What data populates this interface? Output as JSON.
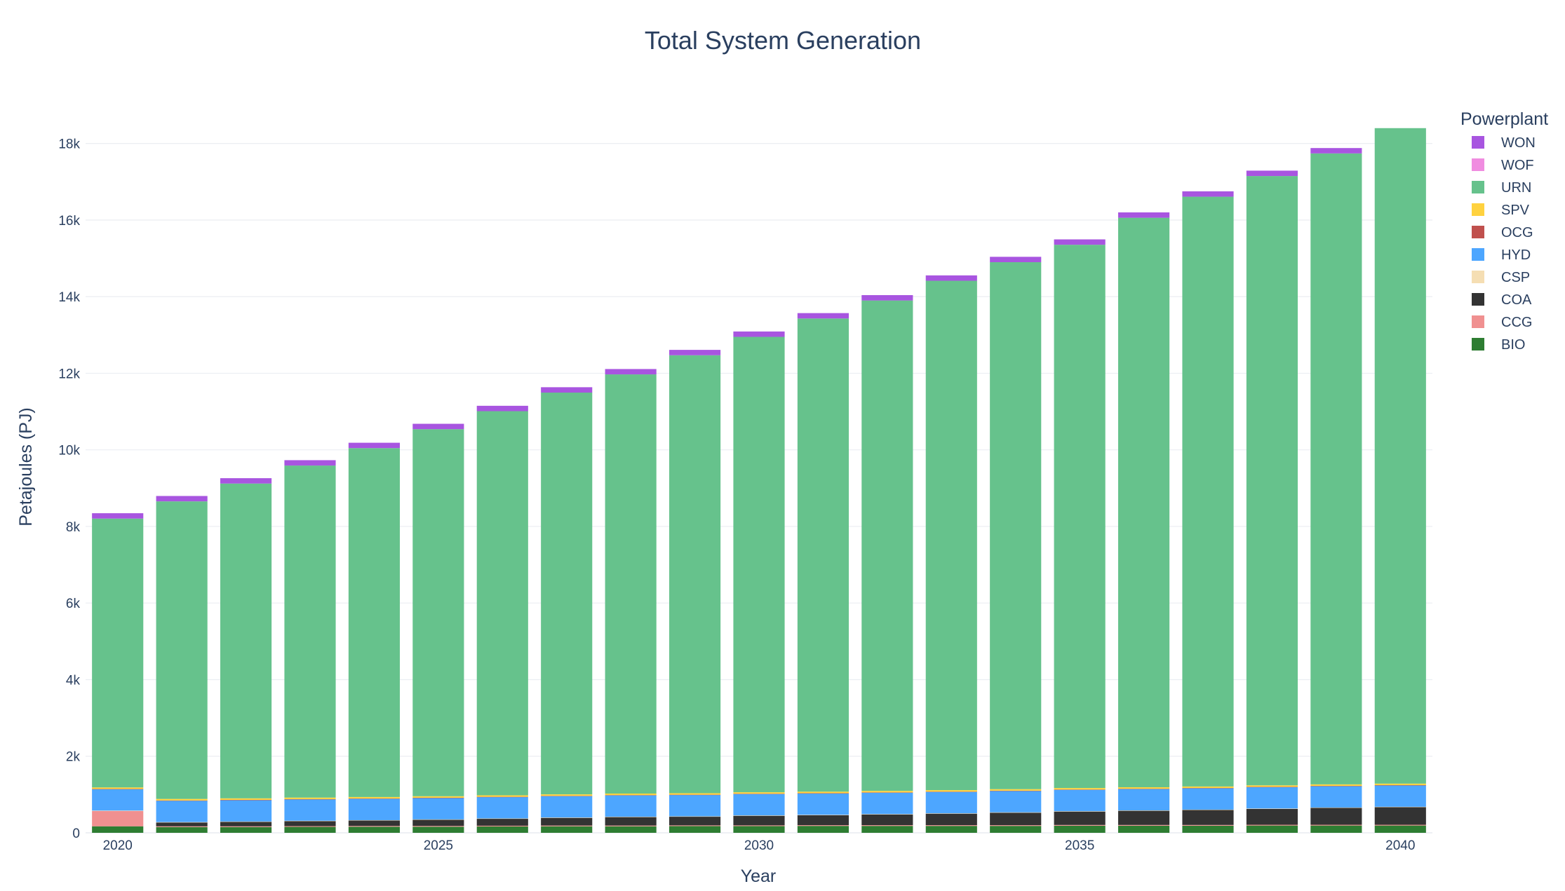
{
  "chart_data": {
    "type": "bar",
    "barmode": "stack",
    "title": "Total System Generation",
    "xlabel": "Year",
    "ylabel": "Petajoules (PJ)",
    "ylim": [
      0,
      19000
    ],
    "y_ticks": [
      0,
      2000,
      4000,
      6000,
      8000,
      10000,
      12000,
      14000,
      16000,
      18000
    ],
    "y_tick_labels": [
      "0",
      "2k",
      "4k",
      "6k",
      "8k",
      "10k",
      "12k",
      "14k",
      "16k",
      "18k"
    ],
    "x_ticks": [
      2020,
      2025,
      2030,
      2035,
      2040
    ],
    "x_tick_labels": [
      "2020",
      "2025",
      "2030",
      "2035",
      "2040"
    ],
    "grid": true,
    "legend_title": "Powerplant",
    "legend_position": "right",
    "categories": [
      2020,
      2021,
      2022,
      2023,
      2024,
      2025,
      2026,
      2027,
      2028,
      2029,
      2030,
      2031,
      2032,
      2033,
      2034,
      2035,
      2036,
      2037,
      2038,
      2039,
      2040
    ],
    "series": [
      {
        "name": "BIO",
        "color": "#2e7d32",
        "values": [
          170,
          150,
          150,
          155,
          160,
          160,
          165,
          170,
          170,
          175,
          175,
          180,
          180,
          180,
          180,
          185,
          185,
          185,
          190,
          190,
          190
        ]
      },
      {
        "name": "CCG",
        "color": "#f09090",
        "values": [
          400,
          20,
          20,
          20,
          20,
          20,
          20,
          20,
          20,
          20,
          20,
          20,
          20,
          20,
          20,
          20,
          20,
          20,
          20,
          20,
          20
        ]
      },
      {
        "name": "COA",
        "color": "#333333",
        "values": [
          0,
          100,
          115,
          130,
          140,
          160,
          180,
          200,
          220,
          225,
          250,
          260,
          280,
          300,
          325,
          350,
          370,
          390,
          415,
          440,
          460
        ]
      },
      {
        "name": "CSP",
        "color": "#f5deb3",
        "values": [
          10,
          10,
          10,
          10,
          10,
          10,
          10,
          10,
          10,
          10,
          10,
          10,
          10,
          10,
          10,
          10,
          10,
          10,
          10,
          10,
          10
        ]
      },
      {
        "name": "HYD",
        "color": "#4da6ff",
        "values": [
          560,
          560,
          560,
          560,
          560,
          560,
          560,
          560,
          560,
          560,
          560,
          560,
          560,
          560,
          560,
          560,
          560,
          560,
          560,
          560,
          560
        ]
      },
      {
        "name": "OCG",
        "color": "#c0504d",
        "values": [
          5,
          5,
          5,
          5,
          5,
          5,
          5,
          5,
          5,
          5,
          5,
          5,
          5,
          5,
          5,
          5,
          5,
          5,
          5,
          5,
          5
        ]
      },
      {
        "name": "SPV",
        "color": "#ffd23f",
        "values": [
          40,
          40,
          40,
          40,
          40,
          40,
          40,
          40,
          40,
          40,
          40,
          40,
          40,
          40,
          40,
          40,
          40,
          40,
          40,
          40,
          40
        ]
      },
      {
        "name": "URN",
        "color": "#66c28c",
        "values": [
          7020,
          7770,
          8220,
          8670,
          9110,
          9585,
          10030,
          10490,
          10945,
          11435,
          11890,
          12355,
          12805,
          13300,
          13760,
          14185,
          14870,
          15400,
          15910,
          16475,
          17115
        ]
      },
      {
        "name": "WOF",
        "color": "#f08ce0",
        "values": [
          0,
          0,
          0,
          0,
          0,
          0,
          0,
          0,
          0,
          0,
          0,
          0,
          0,
          0,
          0,
          0,
          0,
          0,
          0,
          0,
          0
        ]
      },
      {
        "name": "WON",
        "color": "#a855e0",
        "values": [
          140,
          140,
          140,
          140,
          140,
          140,
          140,
          140,
          140,
          140,
          140,
          140,
          140,
          140,
          140,
          140,
          140,
          140,
          140,
          140,
          0
        ]
      }
    ]
  }
}
